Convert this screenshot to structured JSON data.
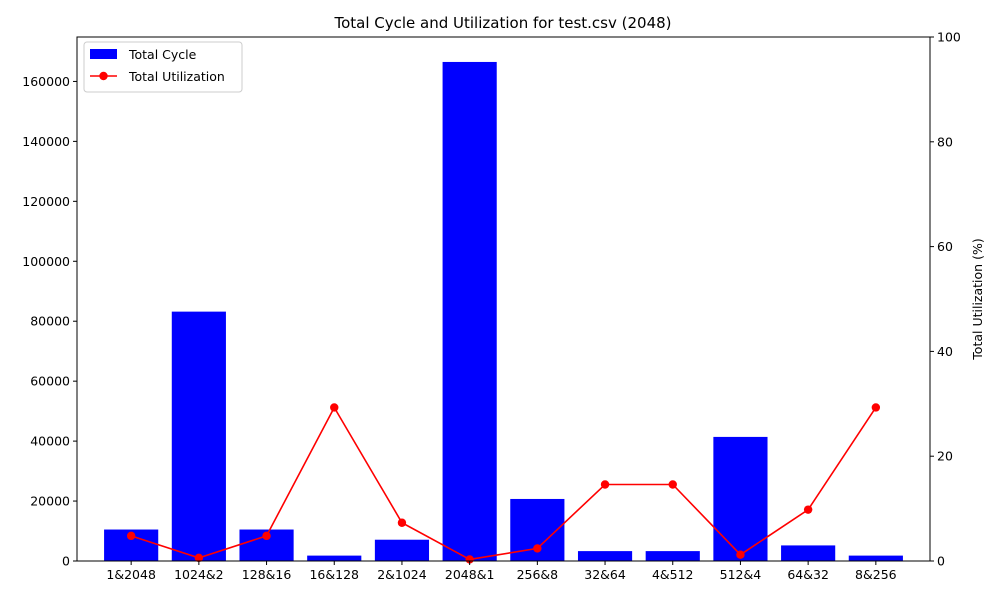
{
  "chart_data": {
    "type": "bar",
    "title": "Total Cycle and Utilization for test.csv (2048)",
    "categories": [
      "1&2048",
      "1024&2",
      "128&16",
      "16&128",
      "2&1024",
      "2048&1",
      "256&8",
      "32&64",
      "4&512",
      "512&4",
      "64&32",
      "8&256"
    ],
    "series": [
      {
        "name": "Total Cycle",
        "type": "bar",
        "axis": "left",
        "color": "#0000ff",
        "values": [
          10500,
          83200,
          10500,
          1800,
          7100,
          166500,
          20700,
          3300,
          3300,
          41400,
          5200,
          1800
        ]
      },
      {
        "name": "Total Utilization",
        "type": "line",
        "axis": "right",
        "color": "#ff0000",
        "marker": "circle",
        "values": [
          4.8,
          0.6,
          4.8,
          29.3,
          7.3,
          0.3,
          2.4,
          14.6,
          14.6,
          1.2,
          9.8,
          29.3
        ]
      }
    ],
    "y_left": {
      "label": "",
      "ylim": [
        0,
        174825
      ],
      "ticks": [
        0,
        20000,
        40000,
        60000,
        80000,
        100000,
        120000,
        140000,
        160000
      ]
    },
    "y_right": {
      "label": "Total Utilization (%)",
      "ylim": [
        0,
        100
      ],
      "ticks": [
        0,
        20,
        40,
        60,
        80,
        100
      ]
    },
    "xlabel": "",
    "grid": false,
    "legend_position": "top-left"
  }
}
